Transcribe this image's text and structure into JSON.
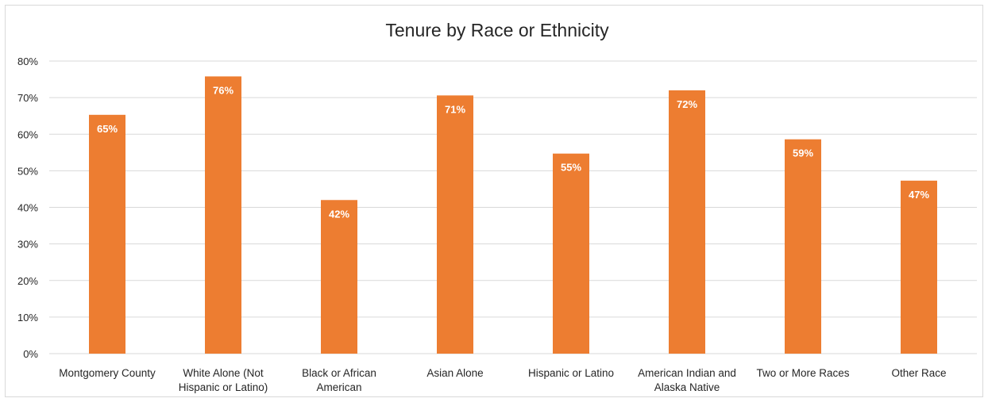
{
  "chart_data": {
    "type": "bar",
    "title": "Tenure by Race or Ethnicity",
    "xlabel": "",
    "ylabel": "",
    "ylim": [
      0,
      80
    ],
    "y_ticks": [
      "0%",
      "10%",
      "20%",
      "30%",
      "40%",
      "50%",
      "60%",
      "70%",
      "80%"
    ],
    "grid": true,
    "bar_color": "#ed7d31",
    "gridline_color": "#d9d9d9",
    "categories": [
      [
        "Montgomery County"
      ],
      [
        "White Alone (Not",
        "Hispanic or Latino)"
      ],
      [
        "Black or African",
        "American"
      ],
      [
        "Asian Alone"
      ],
      [
        "Hispanic or Latino"
      ],
      [
        "American Indian and",
        "Alaska Native"
      ],
      [
        "Two or More Races"
      ],
      [
        "Other Race"
      ]
    ],
    "values": [
      65.3,
      75.8,
      42.0,
      70.6,
      54.7,
      72.0,
      58.6,
      47.3
    ],
    "data_labels": [
      "65%",
      "76%",
      "42%",
      "71%",
      "55%",
      "72%",
      "59%",
      "47%"
    ]
  }
}
